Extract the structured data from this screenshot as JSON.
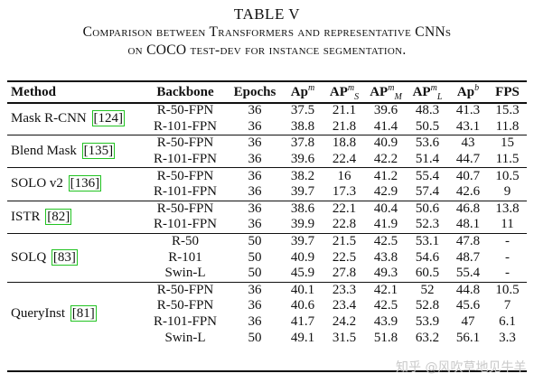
{
  "caption": {
    "title": "TABLE V",
    "line1": "Comparison between Transformers and representative CNNs",
    "line2": "on COCO test-dev for instance segmentation."
  },
  "headers": {
    "method": "Method",
    "backbone": "Backbone",
    "epochs": "Epochs",
    "ap": "Ap",
    "ap_sup": "m",
    "aps": "AP",
    "aps_sup": "m",
    "aps_sub": "S",
    "apm": "AP",
    "apm_sup": "m",
    "apm_sub": "M",
    "apl": "AP",
    "apl_sup": "m",
    "apl_sub": "L",
    "apb": "Ap",
    "apb_sup": "b",
    "fps": "FPS"
  },
  "groups": [
    {
      "method": "Mask R-CNN",
      "ref": "[124]",
      "rows": [
        [
          "R-50-FPN",
          "36",
          "37.5",
          "21.1",
          "39.6",
          "48.3",
          "41.3",
          "15.3"
        ],
        [
          "R-101-FPN",
          "36",
          "38.8",
          "21.8",
          "41.4",
          "50.5",
          "43.1",
          "11.8"
        ]
      ]
    },
    {
      "method": "Blend Mask",
      "ref": "[135]",
      "rows": [
        [
          "R-50-FPN",
          "36",
          "37.8",
          "18.8",
          "40.9",
          "53.6",
          "43",
          "15"
        ],
        [
          "R-101-FPN",
          "36",
          "39.6",
          "22.4",
          "42.2",
          "51.4",
          "44.7",
          "11.5"
        ]
      ]
    },
    {
      "method": "SOLO v2",
      "ref": "[136]",
      "rows": [
        [
          "R-50-FPN",
          "36",
          "38.2",
          "16",
          "41.2",
          "55.4",
          "40.7",
          "10.5"
        ],
        [
          "R-101-FPN",
          "36",
          "39.7",
          "17.3",
          "42.9",
          "57.4",
          "42.6",
          "9"
        ]
      ]
    },
    {
      "method": "ISTR",
      "ref": "[82]",
      "rows": [
        [
          "R-50-FPN",
          "36",
          "38.6",
          "22.1",
          "40.4",
          "50.6",
          "46.8",
          "13.8"
        ],
        [
          "R-101-FPN",
          "36",
          "39.9",
          "22.8",
          "41.9",
          "52.3",
          "48.1",
          "11"
        ]
      ]
    },
    {
      "method": "SOLQ",
      "ref": "[83]",
      "rows": [
        [
          "R-50",
          "50",
          "39.7",
          "21.5",
          "42.5",
          "53.1",
          "47.8",
          "-"
        ],
        [
          "R-101",
          "50",
          "40.9",
          "22.5",
          "43.8",
          "54.6",
          "48.7",
          "-"
        ],
        [
          "Swin-L",
          "50",
          "45.9",
          "27.8",
          "49.3",
          "60.5",
          "55.4",
          "-"
        ]
      ]
    },
    {
      "method": "QueryInst",
      "ref": "[81]",
      "rows": [
        [
          "R-50-FPN",
          "36",
          "40.1",
          "23.3",
          "42.1",
          "52",
          "44.8",
          "10.5"
        ],
        [
          "R-50-FPN",
          "36",
          "40.6",
          "23.4",
          "42.5",
          "52.8",
          "45.6",
          "7"
        ],
        [
          "R-101-FPN",
          "36",
          "41.7",
          "24.2",
          "43.9",
          "53.9",
          "47",
          "6.1"
        ],
        [
          "Swin-L",
          "50",
          "49.1",
          "31.5",
          "51.8",
          "63.2",
          "56.1",
          "3.3"
        ]
      ]
    }
  ],
  "watermark": "知乎 @风吹草地见牛羊"
}
